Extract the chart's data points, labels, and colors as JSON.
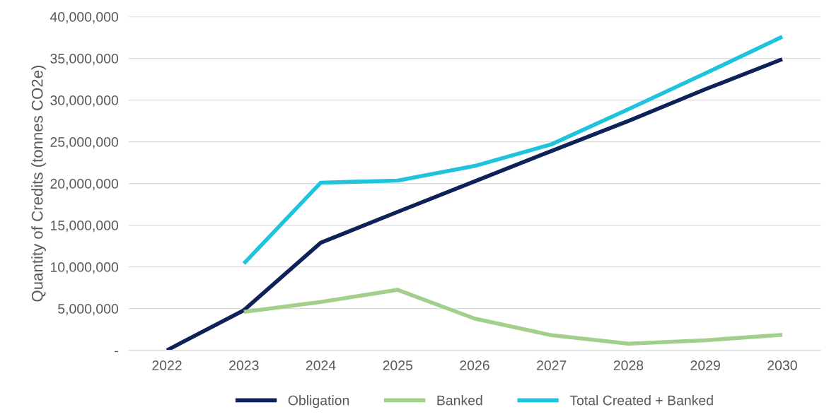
{
  "chart_data": {
    "type": "line",
    "ylabel": "Quantity of Credits (tonnes CO2e)",
    "categories": [
      "2022",
      "2023",
      "2024",
      "2025",
      "2026",
      "2027",
      "2028",
      "2029",
      "2030"
    ],
    "series": [
      {
        "name": "Obligation",
        "color": "#0f2258",
        "values": [
          0,
          4800000,
          12900000,
          16600000,
          20250000,
          23900000,
          27500000,
          31300000,
          34900000
        ]
      },
      {
        "name": "Banked",
        "color": "#a3cf8c",
        "values": [
          null,
          4600000,
          5800000,
          7250000,
          3800000,
          1800000,
          800000,
          1200000,
          1850000
        ]
      },
      {
        "name": "Total Created + Banked",
        "color": "#1fc3dc",
        "values": [
          null,
          10400000,
          20100000,
          20350000,
          22100000,
          24700000,
          28900000,
          33200000,
          37600000
        ]
      }
    ],
    "ylim": [
      0,
      40000000
    ],
    "yticks": [
      {
        "value": 0,
        "label": "-"
      },
      {
        "value": 5000000,
        "label": "5,000,000"
      },
      {
        "value": 10000000,
        "label": "10,000,000"
      },
      {
        "value": 15000000,
        "label": "15,000,000"
      },
      {
        "value": 20000000,
        "label": "20,000,000"
      },
      {
        "value": 25000000,
        "label": "25,000,000"
      },
      {
        "value": 30000000,
        "label": "30,000,000"
      },
      {
        "value": 35000000,
        "label": "35,000,000"
      },
      {
        "value": 40000000,
        "label": "40,000,000"
      }
    ],
    "grid": "y",
    "legend": "bottom",
    "marker": "none",
    "line_style": "solid"
  }
}
